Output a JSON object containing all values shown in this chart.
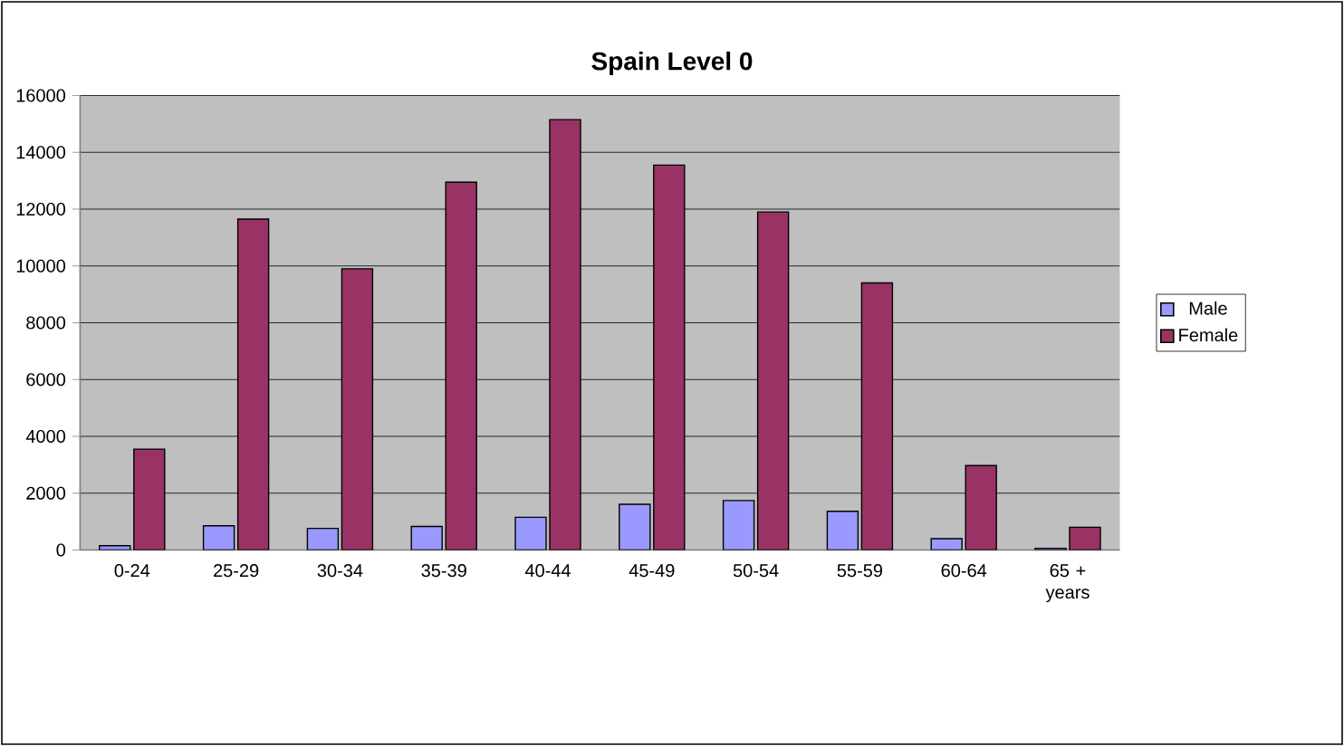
{
  "chart_data": {
    "type": "bar",
    "title": "Spain Level 0",
    "categories": [
      "0-24",
      "25-29",
      "30-34",
      "35-39",
      "40-44",
      "45-49",
      "50-54",
      "55-59",
      "60-64",
      "65 + years"
    ],
    "series": [
      {
        "name": "Male",
        "color": "#9999ff",
        "values": [
          150,
          850,
          760,
          830,
          1150,
          1610,
          1740,
          1360,
          400,
          60
        ]
      },
      {
        "name": "Female",
        "color": "#993366",
        "values": [
          3550,
          11650,
          9900,
          12950,
          15150,
          13550,
          11900,
          9400,
          2970,
          800
        ]
      }
    ],
    "ylim": [
      0,
      16000
    ],
    "yticks": [
      0,
      2000,
      4000,
      6000,
      8000,
      10000,
      12000,
      14000,
      16000
    ],
    "grid": "y",
    "legend": "right"
  }
}
